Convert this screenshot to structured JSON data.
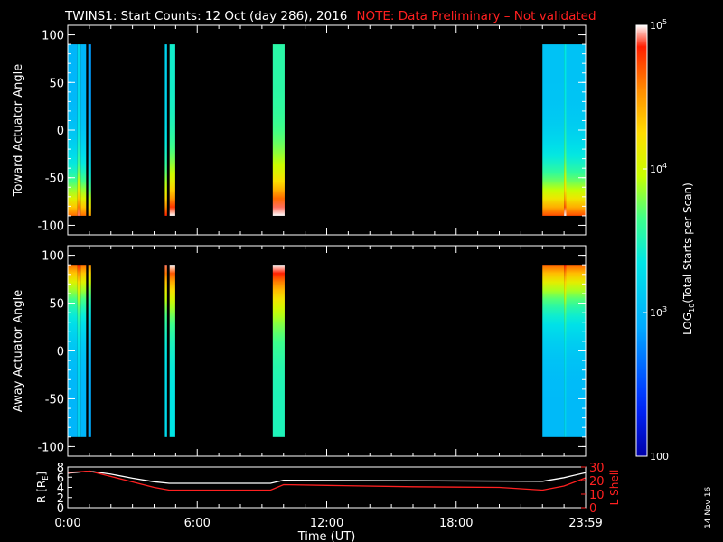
{
  "title": {
    "main": "TWINS1: Start Counts: 12 Oct (day 286), 2016",
    "note": "NOTE: Data Preliminary – Not validated",
    "note_color": "#ff2020"
  },
  "stamp": "14 Nov 16",
  "chart_data": [
    {
      "type": "heatmap",
      "name": "toward-panel",
      "ylabel": "Toward Actuator Angle",
      "ylim": [
        -110,
        110
      ],
      "y_ticks": [
        "100",
        "50",
        "0",
        "-50",
        "-100"
      ],
      "y_tick_values": [
        100,
        50,
        0,
        -50,
        -100
      ],
      "xlim": [
        0,
        24
      ],
      "data_ylim": [
        -90,
        90
      ],
      "direction": "toward",
      "segments": [
        {
          "start": 0.0,
          "end": 0.45,
          "level": 0.43
        },
        {
          "start": 0.45,
          "end": 0.6,
          "level": 0.52
        },
        {
          "start": 0.6,
          "end": 0.85,
          "level": 0.43
        },
        {
          "start": 0.95,
          "end": 1.08,
          "level": 0.38
        },
        {
          "start": 4.5,
          "end": 4.6,
          "level": 0.5
        },
        {
          "start": 4.72,
          "end": 4.98,
          "level": 0.58
        },
        {
          "start": 9.5,
          "end": 10.05,
          "level": 0.62
        },
        {
          "start": 22.0,
          "end": 23.0,
          "level": 0.46
        },
        {
          "start": 23.0,
          "end": 23.1,
          "level": 0.55
        },
        {
          "start": 23.1,
          "end": 24.0,
          "level": 0.46
        }
      ]
    },
    {
      "type": "heatmap",
      "name": "away-panel",
      "ylabel": "Away Actuator Angle",
      "ylim": [
        -110,
        110
      ],
      "y_ticks": [
        "100",
        "50",
        "0",
        "-50",
        "-100"
      ],
      "y_tick_values": [
        100,
        50,
        0,
        -50,
        -100
      ],
      "xlim": [
        0,
        24
      ],
      "data_ylim": [
        -90,
        90
      ],
      "direction": "away",
      "segments": [
        {
          "start": 0.0,
          "end": 0.45,
          "level": 0.43
        },
        {
          "start": 0.45,
          "end": 0.6,
          "level": 0.5
        },
        {
          "start": 0.6,
          "end": 0.85,
          "level": 0.43
        },
        {
          "start": 0.95,
          "end": 1.08,
          "level": 0.4
        },
        {
          "start": 4.5,
          "end": 4.6,
          "level": 0.52
        },
        {
          "start": 4.72,
          "end": 4.98,
          "level": 0.55
        },
        {
          "start": 9.5,
          "end": 10.05,
          "level": 0.6
        },
        {
          "start": 22.0,
          "end": 23.0,
          "level": 0.44
        },
        {
          "start": 23.0,
          "end": 23.1,
          "level": 0.5
        },
        {
          "start": 23.1,
          "end": 24.0,
          "level": 0.44
        }
      ]
    },
    {
      "type": "line",
      "name": "ephemeris-panel",
      "xlabel": "Time (UT)",
      "x_ticks": [
        "0:00",
        "6:00",
        "12:00",
        "18:00",
        "23:59"
      ],
      "x_tick_values": [
        0,
        6,
        12,
        18,
        24
      ],
      "left_axis": {
        "label": "R [R",
        "label_sub": "E",
        "label_close": "]",
        "ylim": [
          0,
          8
        ],
        "ticks": [
          "8",
          "6",
          "4",
          "2",
          "0"
        ],
        "tick_values": [
          8,
          6,
          4,
          2,
          0
        ]
      },
      "right_axis": {
        "label": "L Shell",
        "ylim": [
          0,
          30
        ],
        "color": "#ff2020",
        "ticks": [
          "30",
          "20",
          "10",
          "0"
        ],
        "tick_values": [
          30,
          20,
          10,
          0
        ]
      },
      "series": [
        {
          "axis": "left",
          "color": "#ffffff",
          "x": [
            0,
            1,
            2,
            3,
            4,
            4.7,
            9.4,
            10.0,
            22,
            23,
            24
          ],
          "y": [
            6.8,
            7.2,
            6.6,
            5.8,
            5.1,
            4.8,
            4.8,
            5.4,
            5.2,
            5.9,
            6.9
          ]
        },
        {
          "axis": "right",
          "color": "#ff2020",
          "x": [
            0,
            1,
            2,
            3,
            4,
            4.7,
            9.4,
            10.0,
            12,
            16,
            20,
            22,
            23,
            24
          ],
          "y": [
            26,
            27,
            23,
            19,
            15,
            13,
            13,
            17,
            16.5,
            15.5,
            15,
            13,
            16,
            22
          ]
        }
      ]
    },
    {
      "type": "colorbar",
      "name": "count-colorbar",
      "label_pre": "LOG",
      "label_sub": "10",
      "label_post": "(Total Starts per Scan)",
      "ticks": [
        {
          "value": 100000,
          "base": "10",
          "exp": "5"
        },
        {
          "value": 10000,
          "base": "10",
          "exp": "4"
        },
        {
          "value": 1000,
          "base": "10",
          "exp": "3"
        },
        {
          "value": 100,
          "base": "100",
          "exp": ""
        }
      ],
      "range": [
        100,
        100000
      ]
    }
  ]
}
